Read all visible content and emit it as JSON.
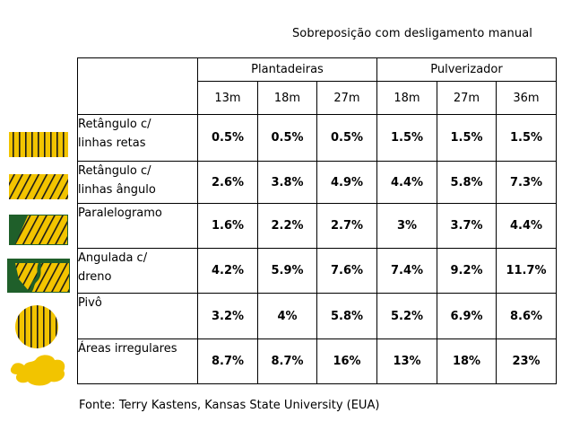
{
  "title": "Sobreposição com desligamento manual",
  "source": "Fonte: Terry Kastens, Kansas State University (EUA)",
  "groups": [
    {
      "name": "Plantadeiras",
      "widths": [
        "13m",
        "18m",
        "27m"
      ]
    },
    {
      "name": "Pulverizador",
      "widths": [
        "18m",
        "27m",
        "36m"
      ]
    }
  ],
  "rows": [
    {
      "label": "Retângulo c/\nlinhas retas",
      "icon": "rectangle-straight-rows-icon",
      "values": [
        "0.5%",
        "0.5%",
        "0.5%",
        "1.5%",
        "1.5%",
        "1.5%"
      ]
    },
    {
      "label": "Retângulo c/\nlinhas ângulo",
      "icon": "rectangle-angled-rows-icon",
      "values": [
        "2.6%",
        "3.8%",
        "4.9%",
        "4.4%",
        "5.8%",
        "7.3%"
      ]
    },
    {
      "label": "Paralelogramo",
      "icon": "parallelogram-field-icon",
      "values": [
        "1.6%",
        "2.2%",
        "2.7%",
        "3%",
        "3.7%",
        "4.4%"
      ]
    },
    {
      "label": "Angulada c/\ndreno",
      "icon": "angled-field-with-drain-icon",
      "values": [
        "4.2%",
        "5.9%",
        "7.6%",
        "7.4%",
        "9.2%",
        "11.7%"
      ]
    },
    {
      "label": "Pivô",
      "icon": "pivot-circle-field-icon",
      "values": [
        "3.2%",
        "4%",
        "5.8%",
        "5.2%",
        "6.9%",
        "8.6%"
      ]
    },
    {
      "label": "Áreas irregulares",
      "icon": "irregular-area-icon",
      "values": [
        "8.7%",
        "8.7%",
        "16%",
        "13%",
        "18%",
        "23%"
      ]
    }
  ],
  "colors": {
    "field_yellow": "#f2c400",
    "field_green": "#1f5f2a",
    "row_stripe": "#1a1a1a"
  }
}
